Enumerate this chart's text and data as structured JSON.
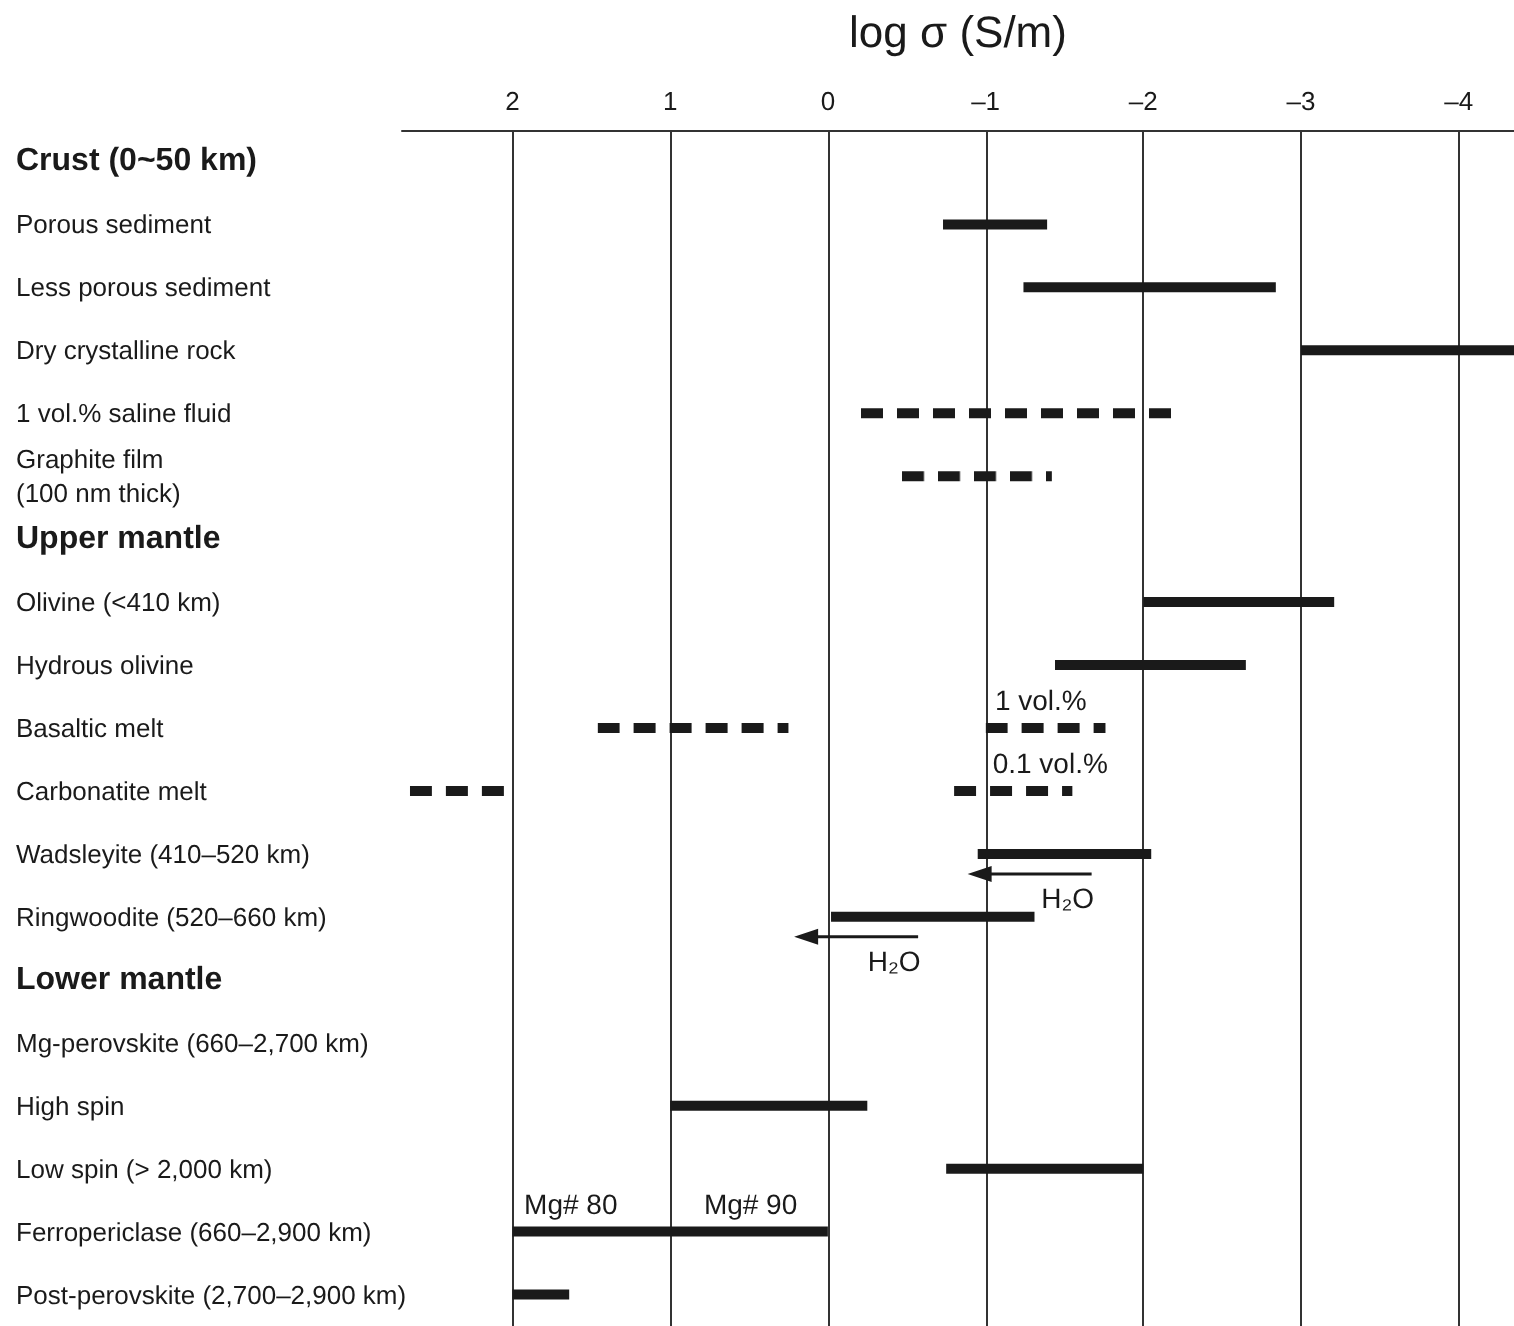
{
  "chart_data": {
    "type": "bar",
    "orientation": "horizontal",
    "xlabel": "log σ (S/m)",
    "categories": [
      "Crust (0~50 km)",
      "Porous sediment",
      "Less porous sediment",
      "Dry crystalline rock",
      "1 vol.% saline fluid",
      "Graphite film\n(100 nm thick)",
      "Upper mantle",
      "Olivine (<410 km)",
      "Hydrous olivine",
      "Basaltic melt",
      "Carbonatite melt",
      "Wadsleyite (410–520 km)",
      "Ringwoodite (520–660 km)",
      "Lower mantle",
      "Mg-perovskite (660–2,700 km)",
      "High spin",
      "Low spin (> 2,000 km)",
      "Ferropericlase (660–2,900 km)",
      "Post-perovskite (2,700–2,900 km)"
    ],
    "series": [
      {
        "color": "#1a1a1a",
        "line_style": "solid",
        "base": [
          null,
          -0.73,
          -1.24,
          -3.0,
          null,
          null,
          null,
          -2.0,
          -1.44,
          null,
          null,
          -0.95,
          -0.02,
          null,
          null,
          1.0,
          -0.75,
          2.0,
          2.0
        ],
        "values": [
          null,
          -0.66,
          -1.6,
          -1.35,
          null,
          null,
          null,
          -1.21,
          -1.21,
          null,
          null,
          -1.1,
          -1.29,
          null,
          null,
          -1.25,
          -1.25,
          -2.0,
          -0.36
        ]
      },
      {
        "color": "#1a1a1a",
        "line_style": "dashed",
        "base": [
          null,
          null,
          null,
          null,
          -0.21,
          -0.47,
          null,
          null,
          null,
          1.46,
          2.65,
          null,
          null,
          null,
          null,
          null,
          null,
          null,
          null
        ],
        "values": [
          null,
          null,
          null,
          null,
          -1.99,
          -0.95,
          null,
          null,
          null,
          -1.21,
          -0.63,
          null,
          null,
          null,
          null,
          null,
          null,
          null,
          null
        ]
      },
      {
        "color": "#1a1a1a",
        "line_style": "dashed",
        "base": [
          null,
          null,
          null,
          null,
          null,
          null,
          null,
          null,
          null,
          -1.0,
          -0.8,
          null,
          null,
          null,
          null,
          null,
          null,
          null,
          null
        ],
        "values": [
          null,
          null,
          null,
          null,
          null,
          null,
          null,
          null,
          null,
          -0.76,
          -0.75,
          null,
          null,
          null,
          null,
          null,
          null,
          null,
          null
        ]
      }
    ],
    "xlim": [
      2.7,
      -4.35
    ],
    "xticks": [
      2,
      1,
      0,
      {
        "value": -1,
        "label": "–1"
      },
      {
        "value": -2,
        "label": "–2"
      },
      {
        "value": -3,
        "label": "–3"
      },
      {
        "value": -4,
        "label": "–4"
      }
    ],
    "grid": "x",
    "annotations": [
      {
        "text": "H₂O",
        "x": -1.52,
        "y": "Wadsleyite (410–520 km)"
      },
      {
        "text": "H₂O",
        "x": -0.42,
        "y": "Ringwoodite (520–660 km)"
      },
      {
        "text": "Mg# 80",
        "x": 1.63,
        "y": "Ferropericlase (660–2,900 km)"
      },
      {
        "text": "Mg# 90",
        "x": 0.49,
        "y": "Ferropericlase (660–2,900 km)"
      },
      {
        "text": "1 vol.%",
        "x": -1.35,
        "y": "Basaltic melt"
      },
      {
        "text": "0.1 vol.%",
        "x": -1.41,
        "y": "Carbonatite melt"
      }
    ]
  }
}
